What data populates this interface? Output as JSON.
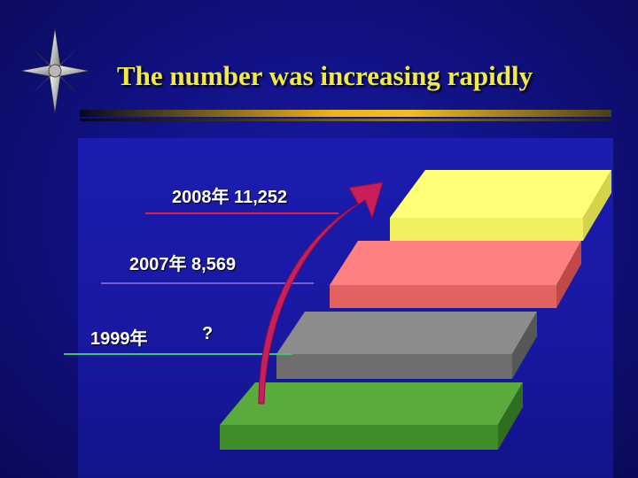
{
  "slide": {
    "title": "The number was increasing rapidly"
  },
  "labels": {
    "y2008": "2008年  11,252",
    "y2007": "2007年 8,569",
    "y1999": "1999年",
    "unknown": "?"
  },
  "colors": {
    "background": "#121286",
    "title": "#f2ec40",
    "step_top": "#ffff78",
    "step_second": "#ff8080",
    "step_third": "#8c8c8c",
    "step_bottom": "#5aaa3c",
    "line_2008": "#e0204a",
    "line_2007": "#7a5ad8",
    "line_1999": "#3cc878",
    "arrow": "#c81e5a"
  }
}
